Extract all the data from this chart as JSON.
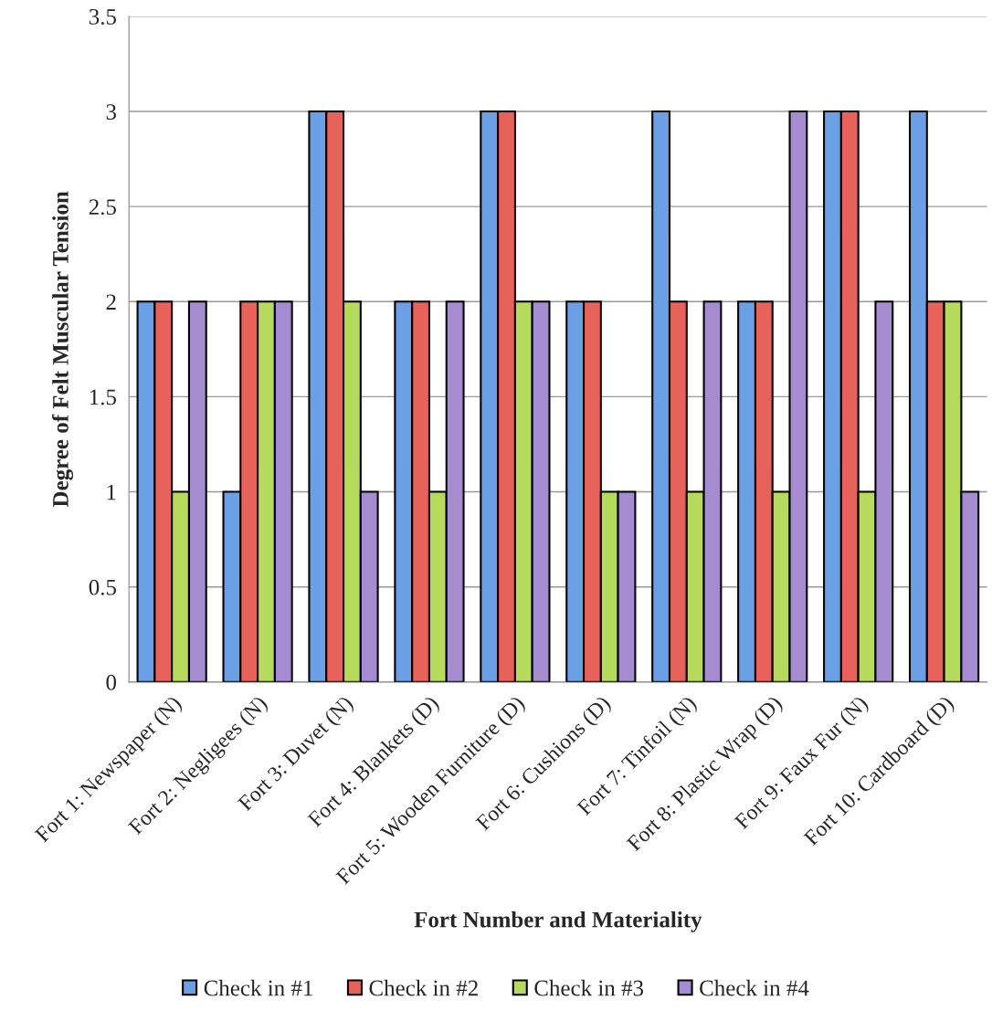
{
  "chart_data": {
    "type": "bar",
    "xlabel": "Fort Number and Materiality",
    "ylabel": "Degree of Felt Muscular Tension",
    "categories": [
      "Fort 1: Newspaper (N)",
      "Fort 2: Negligees (N)",
      "Fort 3: Duvet (N)",
      "Fort 4: Blankets (D)",
      "Fort 5: Wooden Furniture (D)",
      "Fort 6: Cushions (D)",
      "Fort 7: Tinfoil (N)",
      "Fort 8: Plastic Wrap (D)",
      "Fort 9: Faux Fur (N)",
      "Fort 10: Cardboard (D)"
    ],
    "series": [
      {
        "name": "Check in #1",
        "color": "#6b9fe6",
        "values": [
          2,
          1,
          3,
          2,
          3,
          2,
          3,
          2,
          3,
          3
        ]
      },
      {
        "name": "Check in #2",
        "color": "#e8625c",
        "values": [
          2,
          2,
          3,
          2,
          3,
          2,
          2,
          2,
          3,
          2
        ]
      },
      {
        "name": "Check in #3",
        "color": "#b6db5c",
        "values": [
          1,
          2,
          2,
          1,
          2,
          1,
          1,
          1,
          1,
          2
        ]
      },
      {
        "name": "Check in #4",
        "color": "#a58bd0",
        "values": [
          2,
          2,
          1,
          2,
          2,
          1,
          2,
          3,
          2,
          1
        ]
      }
    ],
    "ylim": [
      0,
      3.5
    ],
    "yticks": [
      0,
      0.5,
      1,
      1.5,
      2,
      2.5,
      3,
      3.5
    ],
    "grid": "y",
    "legend": "bottom"
  }
}
